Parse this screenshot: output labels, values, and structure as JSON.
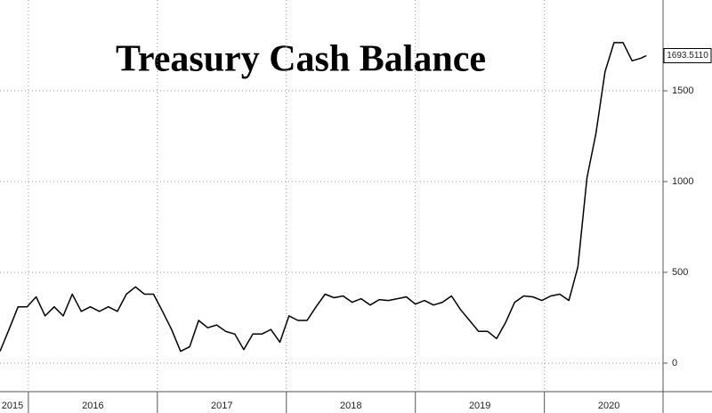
{
  "chart_data": {
    "type": "line",
    "title": "Treasury Cash Balance",
    "x": [
      2015.78,
      2015.85,
      2015.92,
      2015.99,
      2016.06,
      2016.13,
      2016.2,
      2016.27,
      2016.34,
      2016.41,
      2016.48,
      2016.55,
      2016.62,
      2016.69,
      2016.76,
      2016.83,
      2016.9,
      2016.97,
      2017.04,
      2017.11,
      2017.18,
      2017.25,
      2017.32,
      2017.39,
      2017.46,
      2017.53,
      2017.6,
      2017.67,
      2017.74,
      2017.81,
      2017.88,
      2017.95,
      2018.02,
      2018.09,
      2018.16,
      2018.23,
      2018.3,
      2018.37,
      2018.44,
      2018.51,
      2018.58,
      2018.65,
      2018.72,
      2018.79,
      2018.86,
      2018.93,
      2019.0,
      2019.07,
      2019.14,
      2019.21,
      2019.28,
      2019.35,
      2019.42,
      2019.49,
      2019.56,
      2019.63,
      2019.7,
      2019.77,
      2019.84,
      2019.91,
      2019.98,
      2020.05,
      2020.12,
      2020.19,
      2020.26,
      2020.33,
      2020.4,
      2020.47,
      2020.54,
      2020.61,
      2020.68,
      2020.75,
      2020.79
    ],
    "series": [
      {
        "color": "#000000",
        "values": [
          65,
          185,
          310,
          310,
          365,
          260,
          310,
          260,
          380,
          285,
          310,
          285,
          310,
          285,
          380,
          420,
          380,
          380,
          285,
          185,
          65,
          90,
          235,
          195,
          210,
          175,
          160,
          75,
          160,
          160,
          185,
          115,
          260,
          235,
          235,
          310,
          380,
          360,
          370,
          335,
          355,
          320,
          350,
          345,
          355,
          365,
          325,
          345,
          320,
          335,
          370,
          295,
          235,
          175,
          175,
          135,
          225,
          335,
          370,
          365,
          345,
          370,
          380,
          345,
          530,
          1020,
          1265,
          1605,
          1765,
          1765,
          1665,
          1680,
          1693.511
        ]
      }
    ],
    "last_label": "1693.5110",
    "xlim": [
      2015.78,
      2020.92
    ],
    "xticks": [
      {
        "value": 2015,
        "label": "2015"
      },
      {
        "value": 2016,
        "label": "2016"
      },
      {
        "value": 2017,
        "label": "2017"
      },
      {
        "value": 2018,
        "label": "2018"
      },
      {
        "value": 2019,
        "label": "2019"
      },
      {
        "value": 2020,
        "label": "2020"
      }
    ],
    "ylim": [
      -157,
      2000
    ],
    "yticks": [
      0,
      500,
      1000,
      1500
    ],
    "grid": true
  }
}
